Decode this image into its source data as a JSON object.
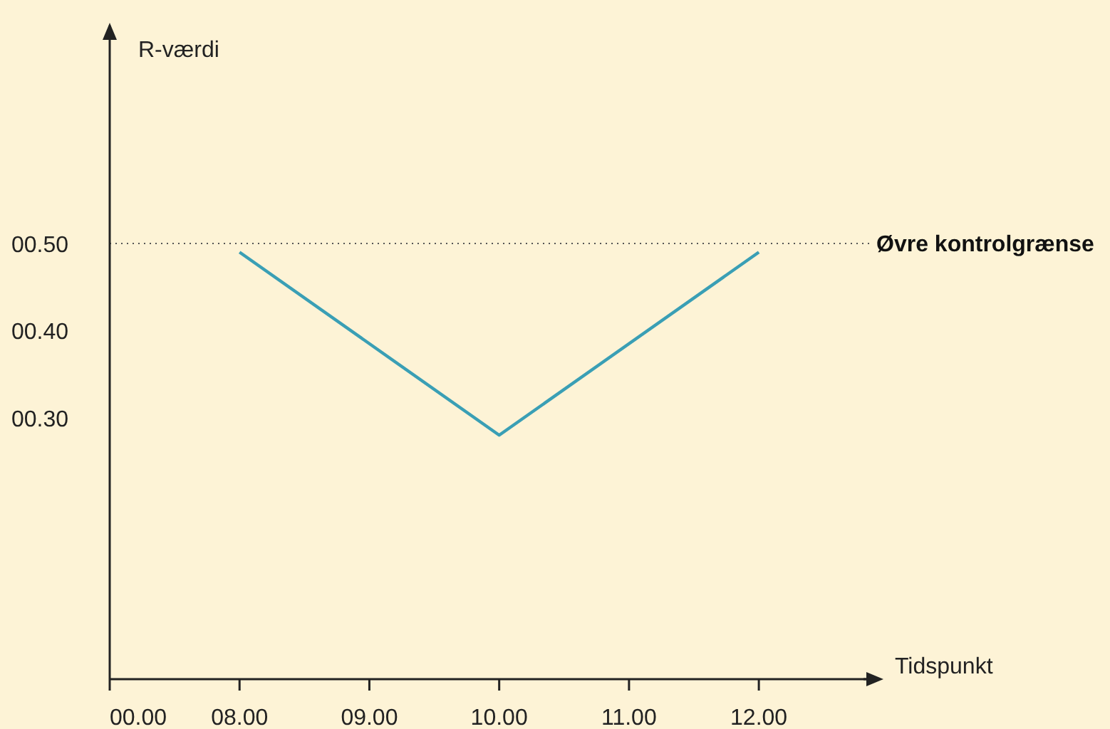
{
  "chart_data": {
    "type": "line",
    "xlabel": "Tidspunkt",
    "ylabel": "R-værdi",
    "categories": [
      "00.00",
      "08.00",
      "09.00",
      "10.00",
      "11.00",
      "12.00"
    ],
    "series": [
      {
        "color": "#3a9fb5",
        "x": [
          "08.00",
          "10.00",
          "12.00"
        ],
        "values": [
          0.49,
          0.28,
          0.49
        ]
      }
    ],
    "ylim": [
      0,
      0.75
    ],
    "yticks": [
      {
        "value": 0.3,
        "label": "00.30"
      },
      {
        "value": 0.4,
        "label": "00.40"
      },
      {
        "value": 0.5,
        "label": "00.50"
      }
    ],
    "ref_lines": [
      {
        "axis": "y",
        "value": 0.5,
        "label": "Øvre kontrolgrænse",
        "line_style": "dotted",
        "color": "#555555"
      }
    ],
    "grid": false,
    "legend": false,
    "marker": "none",
    "line_style": "solid"
  }
}
